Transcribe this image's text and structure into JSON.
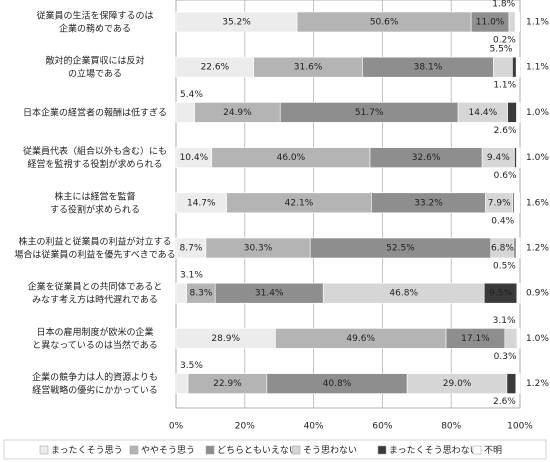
{
  "chart_data": {
    "type": "stacked_bar_horizontal",
    "categories": [
      "従業員の生活を保障するのは\n企業の務めである",
      "敵対的企業買収には反対\nの立場である",
      "日本企業の経営者の報酬は低すぎる",
      "従業員代表（組合以外も含む）にも\n経営を監視する役割が求められる",
      "株主には経営を監督\nする役割が求められる",
      "株主の利益と従業員の利益が対立する\n場合は従業員の利益を優先すべきである",
      "企業を従業員との共同体であると\nみなす考え方は時代遅れである",
      "日本の雇用制度が欧米の企業\nと異なっているのは当然である",
      "企業の競争力は人的資源よりも\n経営戦略の優劣にかかっている"
    ],
    "series": [
      {
        "name": "まったくそう思う",
        "color": "#ececec",
        "values": [
          35.2,
          22.6,
          5.4,
          10.4,
          14.7,
          8.7,
          3.1,
          28.9,
          3.5
        ],
        "value_labels": [
          "35.2%",
          "22.6%",
          "5.4%",
          "10.4%",
          "14.7%",
          "8.7%",
          "3.1%",
          "28.9%",
          "3.5%"
        ]
      },
      {
        "name": "ややそう思う",
        "color": "#b4b4b4",
        "values": [
          50.6,
          31.6,
          24.9,
          46.0,
          42.1,
          30.3,
          8.3,
          49.6,
          22.9
        ],
        "value_labels": [
          "50.6%",
          "31.6%",
          "24.9%",
          "46.0%",
          "42.1%",
          "30.3%",
          "8.3%",
          "49.6%",
          "22.9%"
        ]
      },
      {
        "name": "どちらともいえない",
        "color": "#8e8e8e",
        "values": [
          11.0,
          38.1,
          51.7,
          32.6,
          33.2,
          52.5,
          31.4,
          17.1,
          40.8
        ],
        "value_labels": [
          "11.0%",
          "38.1%",
          "51.7%",
          "32.6%",
          "33.2%",
          "52.5%",
          "31.4%",
          "17.1%",
          "40.8%"
        ]
      },
      {
        "name": "そう思わない",
        "color": "#d6d6d6",
        "values": [
          1.8,
          5.5,
          14.4,
          9.4,
          7.9,
          6.8,
          46.8,
          3.1,
          29.0
        ],
        "value_labels": [
          "1.8%",
          "5.5%",
          "14.4%",
          "9.4%",
          "7.9%",
          "6.8%",
          "46.8%",
          "3.1%",
          "29.0%"
        ]
      },
      {
        "name": "まったくそう思わない",
        "color": "#3a3a3a",
        "values": [
          0.2,
          1.1,
          2.6,
          0.6,
          0.4,
          0.5,
          9.5,
          0.3,
          2.6
        ],
        "value_labels": [
          "0.2%",
          "1.1%",
          "2.6%",
          "0.6%",
          "0.4%",
          "0.5%",
          "9.5%",
          "0.3%",
          "2.6%"
        ]
      },
      {
        "name": "不明",
        "color": "#ffffff",
        "values": [
          1.1,
          1.1,
          1.0,
          1.0,
          1.6,
          1.2,
          0.9,
          1.0,
          1.2
        ],
        "value_labels": [
          "1.1%",
          "1.1%",
          "1.0%",
          "1.0%",
          "1.6%",
          "1.2%",
          "0.9%",
          "1.0%",
          "1.2%"
        ]
      }
    ],
    "xlim": [
      0,
      100
    ],
    "xticks": [
      {
        "value": 0,
        "label": "0%"
      },
      {
        "value": 20,
        "label": "20%"
      },
      {
        "value": 40,
        "label": "40%"
      },
      {
        "value": 60,
        "label": "60%"
      },
      {
        "value": 80,
        "label": "80%"
      },
      {
        "value": 100,
        "label": "100%"
      }
    ],
    "grid": true
  }
}
